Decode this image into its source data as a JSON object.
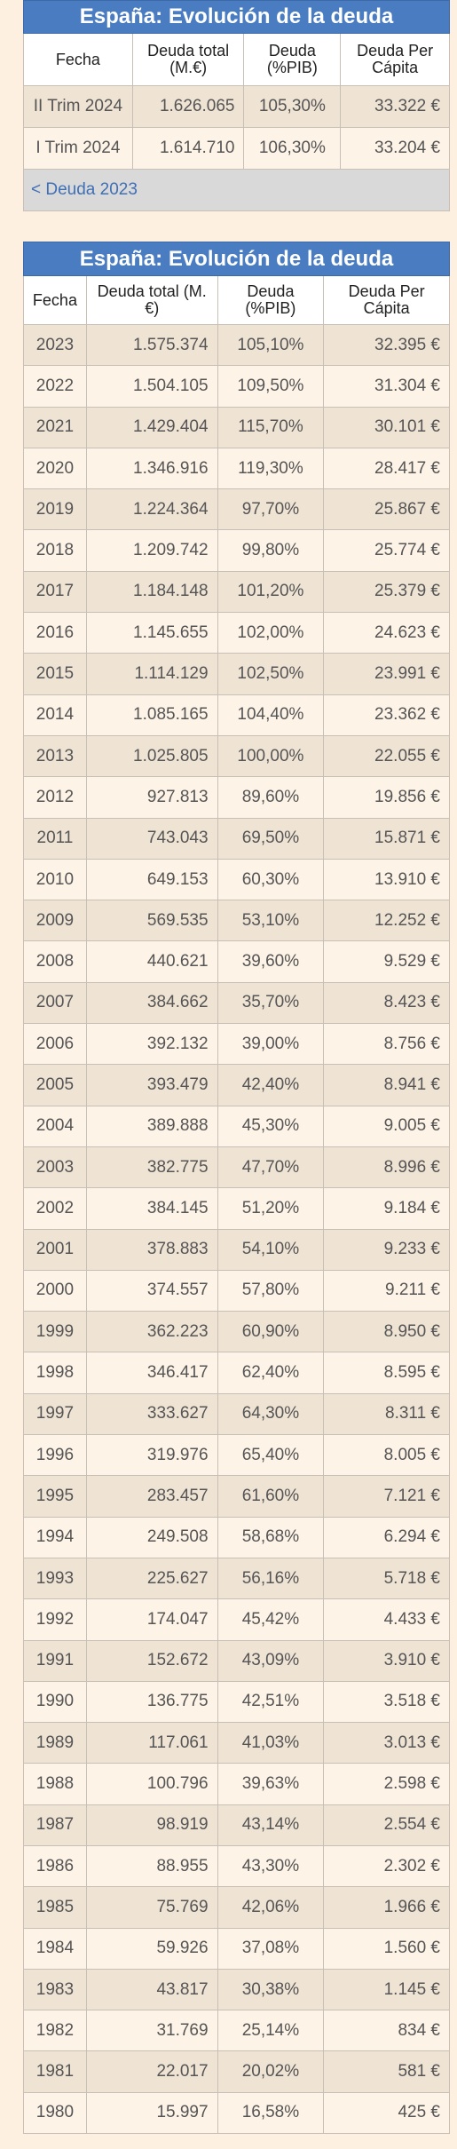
{
  "tables": [
    {
      "title": "España: Evolución de la deuda",
      "columns": [
        "Fecha",
        "Deuda total (M.€)",
        "Deuda (%PIB)",
        "Deuda Per Cápita"
      ],
      "rows": [
        [
          "II Trim 2024",
          "1.626.065",
          "105,30%",
          "33.322 €"
        ],
        [
          "I Trim 2024",
          "1.614.710",
          "106,30%",
          "33.204 €"
        ]
      ],
      "footer_link": "< Deuda 2023"
    },
    {
      "title": "España: Evolución de la deuda",
      "columns": [
        "Fecha",
        "Deuda total (M.€)",
        "Deuda (%PIB)",
        "Deuda Per Cápita"
      ],
      "rows": [
        [
          "2023",
          "1.575.374",
          "105,10%",
          "32.395 €"
        ],
        [
          "2022",
          "1.504.105",
          "109,50%",
          "31.304 €"
        ],
        [
          "2021",
          "1.429.404",
          "115,70%",
          "30.101 €"
        ],
        [
          "2020",
          "1.346.916",
          "119,30%",
          "28.417 €"
        ],
        [
          "2019",
          "1.224.364",
          "97,70%",
          "25.867 €"
        ],
        [
          "2018",
          "1.209.742",
          "99,80%",
          "25.774 €"
        ],
        [
          "2017",
          "1.184.148",
          "101,20%",
          "25.379 €"
        ],
        [
          "2016",
          "1.145.655",
          "102,00%",
          "24.623 €"
        ],
        [
          "2015",
          "1.114.129",
          "102,50%",
          "23.991 €"
        ],
        [
          "2014",
          "1.085.165",
          "104,40%",
          "23.362 €"
        ],
        [
          "2013",
          "1.025.805",
          "100,00%",
          "22.055 €"
        ],
        [
          "2012",
          "927.813",
          "89,60%",
          "19.856 €"
        ],
        [
          "2011",
          "743.043",
          "69,50%",
          "15.871 €"
        ],
        [
          "2010",
          "649.153",
          "60,30%",
          "13.910 €"
        ],
        [
          "2009",
          "569.535",
          "53,10%",
          "12.252 €"
        ],
        [
          "2008",
          "440.621",
          "39,60%",
          "9.529 €"
        ],
        [
          "2007",
          "384.662",
          "35,70%",
          "8.423 €"
        ],
        [
          "2006",
          "392.132",
          "39,00%",
          "8.756 €"
        ],
        [
          "2005",
          "393.479",
          "42,40%",
          "8.941 €"
        ],
        [
          "2004",
          "389.888",
          "45,30%",
          "9.005 €"
        ],
        [
          "2003",
          "382.775",
          "47,70%",
          "8.996 €"
        ],
        [
          "2002",
          "384.145",
          "51,20%",
          "9.184 €"
        ],
        [
          "2001",
          "378.883",
          "54,10%",
          "9.233 €"
        ],
        [
          "2000",
          "374.557",
          "57,80%",
          "9.211 €"
        ],
        [
          "1999",
          "362.223",
          "60,90%",
          "8.950 €"
        ],
        [
          "1998",
          "346.417",
          "62,40%",
          "8.595 €"
        ],
        [
          "1997",
          "333.627",
          "64,30%",
          "8.311 €"
        ],
        [
          "1996",
          "319.976",
          "65,40%",
          "8.005 €"
        ],
        [
          "1995",
          "283.457",
          "61,60%",
          "7.121 €"
        ],
        [
          "1994",
          "249.508",
          "58,68%",
          "6.294 €"
        ],
        [
          "1993",
          "225.627",
          "56,16%",
          "5.718 €"
        ],
        [
          "1992",
          "174.047",
          "45,42%",
          "4.433 €"
        ],
        [
          "1991",
          "152.672",
          "43,09%",
          "3.910 €"
        ],
        [
          "1990",
          "136.775",
          "42,51%",
          "3.518 €"
        ],
        [
          "1989",
          "117.061",
          "41,03%",
          "3.013 €"
        ],
        [
          "1988",
          "100.796",
          "39,63%",
          "2.598 €"
        ],
        [
          "1987",
          "98.919",
          "43,14%",
          "2.554 €"
        ],
        [
          "1986",
          "88.955",
          "43,30%",
          "2.302 €"
        ],
        [
          "1985",
          "75.769",
          "42,06%",
          "1.966 €"
        ],
        [
          "1984",
          "59.926",
          "37,08%",
          "1.560 €"
        ],
        [
          "1983",
          "43.817",
          "30,38%",
          "1.145 €"
        ],
        [
          "1982",
          "31.769",
          "25,14%",
          "834 €"
        ],
        [
          "1981",
          "22.017",
          "20,02%",
          "581 €"
        ],
        [
          "1980",
          "15.997",
          "16,58%",
          "425 €"
        ]
      ]
    }
  ]
}
